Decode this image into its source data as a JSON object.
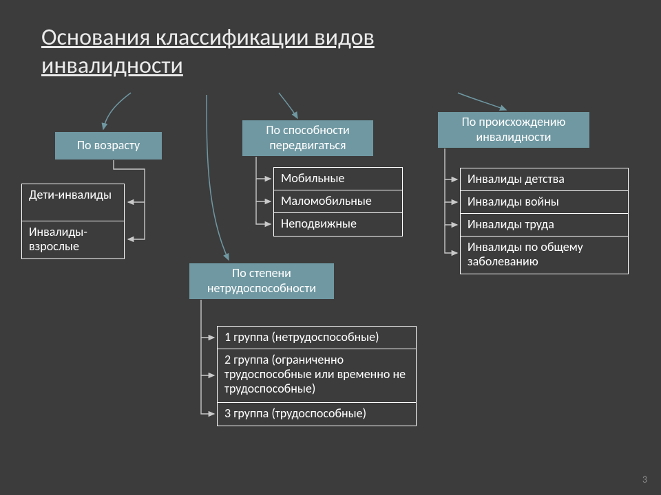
{
  "slide": {
    "background_color": "#3c3c3c",
    "title": {
      "line1": "Основания классификации видов",
      "line2": "инвалидности",
      "color": "#eaeaea",
      "fontsize": 34
    },
    "category_box": {
      "fill": "#6f98a2",
      "text_color": "#ffffff",
      "fontsize": 18
    },
    "item_table": {
      "border_color": "#ffffff",
      "text_color": "#ffffff",
      "fontsize": 18,
      "cell_bg": "transparent"
    },
    "arrow": {
      "curved_color": "#6f98a2",
      "straight_color": "#c9c9c9",
      "width": 1.5,
      "head": 7
    },
    "page_number": {
      "text": "3",
      "color": "#8a8a8a",
      "fontsize": 14
    }
  },
  "categories": {
    "age": {
      "label": "По возрасту"
    },
    "mobility": {
      "label": "По способности передвигаться"
    },
    "origin": {
      "label": "По происхождению инвалидности"
    },
    "degree": {
      "label": "По степени нетрудоспособности"
    }
  },
  "items": {
    "age": [
      "Дети-инвалиды",
      "Инвалиды-взрослые"
    ],
    "mobility": [
      "Мобильные",
      "Маломобильные",
      "Неподвижные"
    ],
    "origin": [
      "Инвалиды детства",
      "Инвалиды войны",
      "Инвалиды труда",
      "Инвалиды по общему заболеванию"
    ],
    "degree": [
      "1 группа (нетрудоспособные)",
      "2 группа (ограниченно трудоспособные или временно не трудоспособные)",
      "3 группа (трудоспособные)"
    ]
  }
}
